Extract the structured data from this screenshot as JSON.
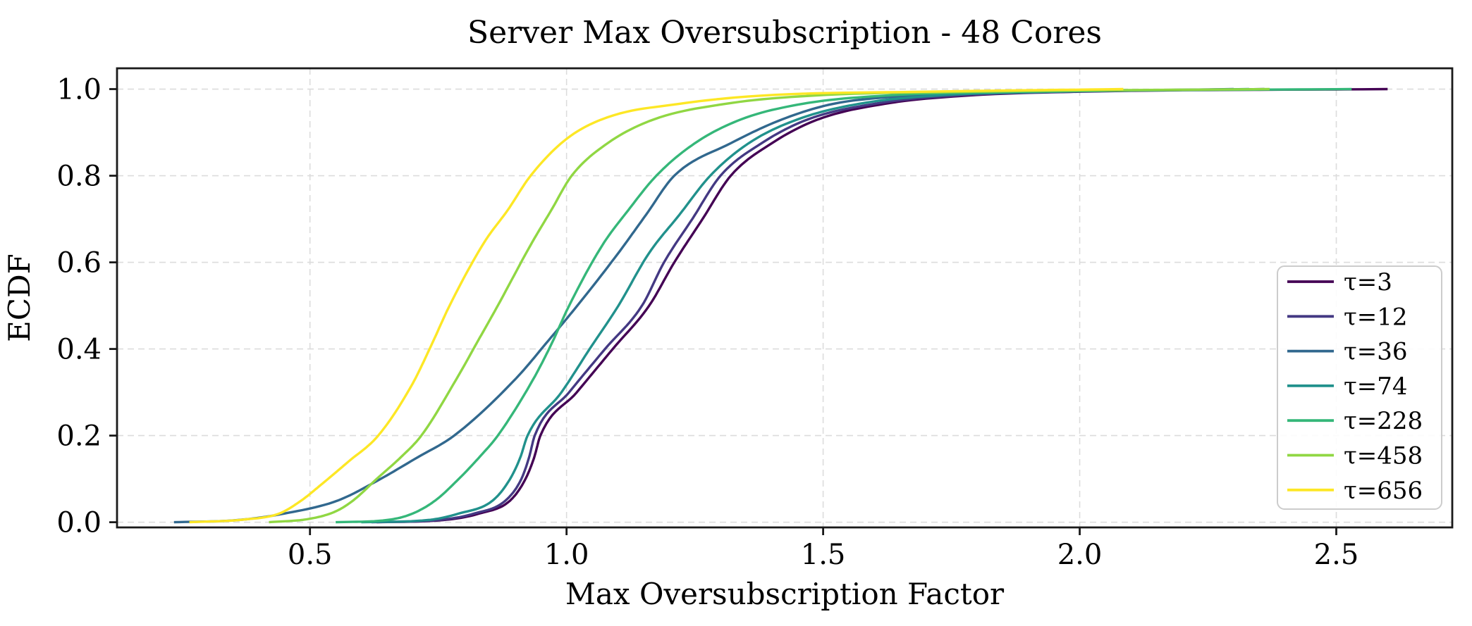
{
  "chart_data": {
    "type": "line",
    "subtype": "ecdf",
    "title": "Server Max Oversubscription - 48 Cores",
    "xlabel": "Max Oversubscription Factor",
    "ylabel": "ECDF",
    "xlim": [
      0.124,
      2.726
    ],
    "ylim": [
      -0.012,
      1.048
    ],
    "x_ticks": [
      0.5,
      1.0,
      1.5,
      2.0,
      2.5
    ],
    "x_tick_labels": [
      "0.5",
      "1.0",
      "1.5",
      "2.0",
      "2.5"
    ],
    "y_ticks": [
      0.0,
      0.2,
      0.4,
      0.6,
      0.8,
      1.0
    ],
    "y_tick_labels": [
      "0.0",
      "0.2",
      "0.4",
      "0.6",
      "0.8",
      "1.0"
    ],
    "grid": true,
    "grid_style": "dashed",
    "grid_color": "#dcdcdc",
    "spine_color": "#1a1a1a",
    "legend_position": "center right",
    "series": [
      {
        "name": "τ=3",
        "color": "#440154",
        "points": [
          [
            0.63,
            0
          ],
          [
            0.76,
            0.005
          ],
          [
            0.83,
            0.02
          ],
          [
            0.89,
            0.05
          ],
          [
            0.92,
            0.1
          ],
          [
            0.937,
            0.15
          ],
          [
            0.949,
            0.2
          ],
          [
            1.02,
            0.3
          ],
          [
            1.09,
            0.4
          ],
          [
            1.161,
            0.5
          ],
          [
            1.21,
            0.6
          ],
          [
            1.265,
            0.7
          ],
          [
            1.32,
            0.8
          ],
          [
            1.4,
            0.875
          ],
          [
            1.49,
            0.93
          ],
          [
            1.62,
            0.966
          ],
          [
            1.78,
            0.985
          ],
          [
            2.0,
            0.994
          ],
          [
            2.6,
            1.0
          ]
        ]
      },
      {
        "name": "τ=12",
        "color": "#443983",
        "points": [
          [
            0.62,
            0
          ],
          [
            0.75,
            0.005
          ],
          [
            0.82,
            0.02
          ],
          [
            0.881,
            0.05
          ],
          [
            0.912,
            0.1
          ],
          [
            0.927,
            0.15
          ],
          [
            0.938,
            0.2
          ],
          [
            1.005,
            0.3
          ],
          [
            1.075,
            0.4
          ],
          [
            1.147,
            0.5
          ],
          [
            1.19,
            0.6
          ],
          [
            1.245,
            0.7
          ],
          [
            1.3,
            0.8
          ],
          [
            1.38,
            0.875
          ],
          [
            1.47,
            0.93
          ],
          [
            1.6,
            0.966
          ],
          [
            1.76,
            0.985
          ],
          [
            1.98,
            0.994
          ],
          [
            2.36,
            1.0
          ]
        ]
      },
      {
        "name": "τ=36",
        "color": "#31688e",
        "points": [
          [
            0.235,
            0
          ],
          [
            0.36,
            0.005
          ],
          [
            0.45,
            0.02
          ],
          [
            0.554,
            0.05
          ],
          [
            0.63,
            0.095
          ],
          [
            0.71,
            0.15
          ],
          [
            0.781,
            0.2
          ],
          [
            0.9,
            0.33
          ],
          [
            0.965,
            0.42
          ],
          [
            1.021,
            0.5
          ],
          [
            1.1,
            0.62
          ],
          [
            1.155,
            0.71
          ],
          [
            1.21,
            0.8
          ],
          [
            1.32,
            0.875
          ],
          [
            1.42,
            0.93
          ],
          [
            1.52,
            0.966
          ],
          [
            1.68,
            0.985
          ],
          [
            1.95,
            0.994
          ],
          [
            2.3,
            1.0
          ]
        ]
      },
      {
        "name": "τ=74",
        "color": "#21918c",
        "points": [
          [
            0.6,
            0
          ],
          [
            0.73,
            0.005
          ],
          [
            0.79,
            0.02
          ],
          [
            0.856,
            0.05
          ],
          [
            0.89,
            0.1
          ],
          [
            0.91,
            0.15
          ],
          [
            0.924,
            0.2
          ],
          [
            0.99,
            0.3
          ],
          [
            1.045,
            0.4
          ],
          [
            1.101,
            0.5
          ],
          [
            1.16,
            0.62
          ],
          [
            1.22,
            0.71
          ],
          [
            1.28,
            0.8
          ],
          [
            1.355,
            0.875
          ],
          [
            1.45,
            0.93
          ],
          [
            1.57,
            0.966
          ],
          [
            1.72,
            0.985
          ],
          [
            1.95,
            0.994
          ],
          [
            2.33,
            1.0
          ]
        ]
      },
      {
        "name": "τ=228",
        "color": "#35b779",
        "points": [
          [
            0.55,
            0
          ],
          [
            0.65,
            0.005
          ],
          [
            0.7,
            0.02
          ],
          [
            0.744,
            0.05
          ],
          [
            0.79,
            0.1
          ],
          [
            0.83,
            0.15
          ],
          [
            0.866,
            0.2
          ],
          [
            0.935,
            0.33
          ],
          [
            0.97,
            0.41
          ],
          [
            1.005,
            0.5
          ],
          [
            1.07,
            0.64
          ],
          [
            1.12,
            0.72
          ],
          [
            1.175,
            0.8
          ],
          [
            1.25,
            0.875
          ],
          [
            1.34,
            0.93
          ],
          [
            1.46,
            0.966
          ],
          [
            1.62,
            0.985
          ],
          [
            1.9,
            0.994
          ],
          [
            2.53,
            1.0
          ]
        ]
      },
      {
        "name": "τ=458",
        "color": "#90d743",
        "points": [
          [
            0.42,
            0
          ],
          [
            0.5,
            0.008
          ],
          [
            0.55,
            0.025
          ],
          [
            0.584,
            0.05
          ],
          [
            0.63,
            0.1
          ],
          [
            0.677,
            0.15
          ],
          [
            0.717,
            0.2
          ],
          [
            0.79,
            0.34
          ],
          [
            0.828,
            0.42
          ],
          [
            0.866,
            0.5
          ],
          [
            0.93,
            0.64
          ],
          [
            0.97,
            0.72
          ],
          [
            1.01,
            0.8
          ],
          [
            1.08,
            0.875
          ],
          [
            1.17,
            0.93
          ],
          [
            1.31,
            0.966
          ],
          [
            1.48,
            0.985
          ],
          [
            1.8,
            0.994
          ],
          [
            2.37,
            1.0
          ]
        ]
      },
      {
        "name": "τ=656",
        "color": "#fde725",
        "points": [
          [
            0.265,
            0
          ],
          [
            0.37,
            0.006
          ],
          [
            0.44,
            0.02
          ],
          [
            0.483,
            0.05
          ],
          [
            0.52,
            0.085
          ],
          [
            0.575,
            0.14
          ],
          [
            0.633,
            0.2
          ],
          [
            0.7,
            0.32
          ],
          [
            0.737,
            0.41
          ],
          [
            0.772,
            0.5
          ],
          [
            0.84,
            0.647
          ],
          [
            0.885,
            0.72
          ],
          [
            0.93,
            0.8
          ],
          [
            1.0,
            0.885
          ],
          [
            1.08,
            0.935
          ],
          [
            1.22,
            0.966
          ],
          [
            1.38,
            0.985
          ],
          [
            1.7,
            0.994
          ],
          [
            2.085,
            1.0
          ]
        ]
      }
    ]
  }
}
